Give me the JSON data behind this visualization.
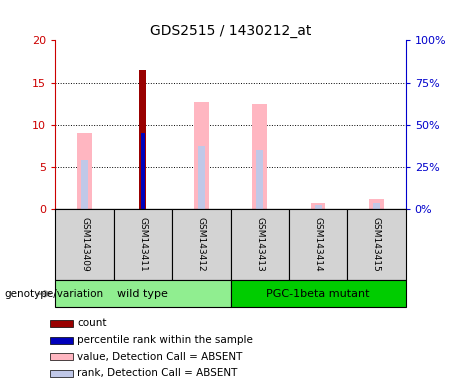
{
  "title": "GDS2515 / 1430212_at",
  "samples": [
    "GSM143409",
    "GSM143411",
    "GSM143412",
    "GSM143413",
    "GSM143414",
    "GSM143415"
  ],
  "groups": [
    {
      "name": "wild type",
      "color": "#90EE90",
      "samples": [
        0,
        1,
        2
      ]
    },
    {
      "name": "PGC-1beta mutant",
      "color": "#00CC00",
      "samples": [
        3,
        4,
        5
      ]
    }
  ],
  "ylim_left": [
    0,
    20
  ],
  "ylim_right": [
    0,
    100
  ],
  "yticks_left": [
    0,
    5,
    10,
    15,
    20
  ],
  "yticks_right": [
    0,
    25,
    50,
    75,
    100
  ],
  "ytick_labels_left": [
    "0",
    "5",
    "10",
    "15",
    "20"
  ],
  "ytick_labels_right": [
    "0%",
    "25%",
    "50%",
    "75%",
    "100%"
  ],
  "bar_color_absent_value": "#FFB6C1",
  "bar_color_absent_rank": "#C0C8E8",
  "bar_color_count": "#990000",
  "bar_color_percentile": "#0000BB",
  "absent_value_heights": [
    9.0,
    0,
    12.7,
    12.5,
    0.8,
    1.2
  ],
  "absent_rank_heights": [
    5.8,
    0,
    7.5,
    7.0,
    0.45,
    0.7
  ],
  "count_heights": [
    0,
    16.5,
    0,
    0,
    0,
    0
  ],
  "percentile_heights": [
    0,
    9.0,
    0,
    0,
    0,
    0
  ],
  "left_ylabel_color": "#CC0000",
  "right_ylabel_color": "#0000CC",
  "legend_items": [
    {
      "color": "#990000",
      "label": "count"
    },
    {
      "color": "#0000BB",
      "label": "percentile rank within the sample"
    },
    {
      "color": "#FFB6C1",
      "label": "value, Detection Call = ABSENT"
    },
    {
      "color": "#C0C8E8",
      "label": "rank, Detection Call = ABSENT"
    }
  ],
  "sample_box_color": "#D3D3D3",
  "genotype_label": "genotype/variation",
  "arrow_color": "#999999",
  "absent_value_bar_width": 0.25,
  "absent_rank_bar_width": 0.12,
  "count_bar_width": 0.12,
  "percentile_bar_width": 0.06
}
